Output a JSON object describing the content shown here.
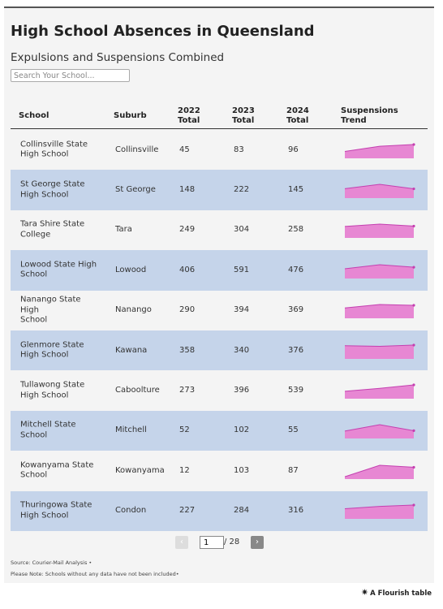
{
  "title": "High School Absences in Queensland",
  "subtitle": "Expulsions and Suspensions Combined",
  "search": {
    "placeholder": "Search Your School..."
  },
  "headers": {
    "school": "School",
    "suburb": "Suburb",
    "y2022": [
      "2022",
      "Total"
    ],
    "y2023": [
      "2023",
      "Total"
    ],
    "y2024": [
      "2024",
      "Total"
    ],
    "trend": [
      "Suspensions",
      "Trend"
    ]
  },
  "rows": [
    {
      "school": [
        "Collinsville State",
        "High School"
      ],
      "suburb": "Collinsville",
      "y2022": 45,
      "y2023": 83,
      "y2024": 96
    },
    {
      "school": [
        "St George State",
        "High School"
      ],
      "suburb": "St George",
      "y2022": 148,
      "y2023": 222,
      "y2024": 145
    },
    {
      "school": [
        "Tara Shire State",
        "College"
      ],
      "suburb": "Tara",
      "y2022": 249,
      "y2023": 304,
      "y2024": 258
    },
    {
      "school": [
        "Lowood State High",
        "School"
      ],
      "suburb": "Lowood",
      "y2022": 406,
      "y2023": 591,
      "y2024": 476
    },
    {
      "school": [
        "Nanango State High",
        "School"
      ],
      "suburb": "Nanango",
      "y2022": 290,
      "y2023": 394,
      "y2024": 369
    },
    {
      "school": [
        "Glenmore State",
        "High School"
      ],
      "suburb": "Kawana",
      "y2022": 358,
      "y2023": 340,
      "y2024": 376
    },
    {
      "school": [
        "Tullawong State",
        "High School"
      ],
      "suburb": "Caboolture",
      "y2022": 273,
      "y2023": 396,
      "y2024": 539
    },
    {
      "school": [
        "Mitchell State",
        "School"
      ],
      "suburb": "Mitchell",
      "y2022": 52,
      "y2023": 102,
      "y2024": 55
    },
    {
      "school": [
        "Kowanyama State",
        "School"
      ],
      "suburb": "Kowanyama",
      "y2022": 12,
      "y2023": 103,
      "y2024": 87
    },
    {
      "school": [
        "Thuringowa State",
        "High School"
      ],
      "suburb": "Condon",
      "y2022": 227,
      "y2023": 284,
      "y2024": 316
    }
  ],
  "pagination": {
    "current": "1",
    "total_label": "/ 28",
    "prev_icon": "‹",
    "next_icon": "›"
  },
  "footer": {
    "source": "Source: Courier-Mail Analysis •",
    "note": "Please Note: Schools without any data have not been included•"
  },
  "credit": {
    "icon": "✷",
    "label": "A Flourish table"
  },
  "colors": {
    "row_alt": "#c5d4ea",
    "trend_fill": "#e787d3",
    "trend_line": "#c440b0"
  }
}
